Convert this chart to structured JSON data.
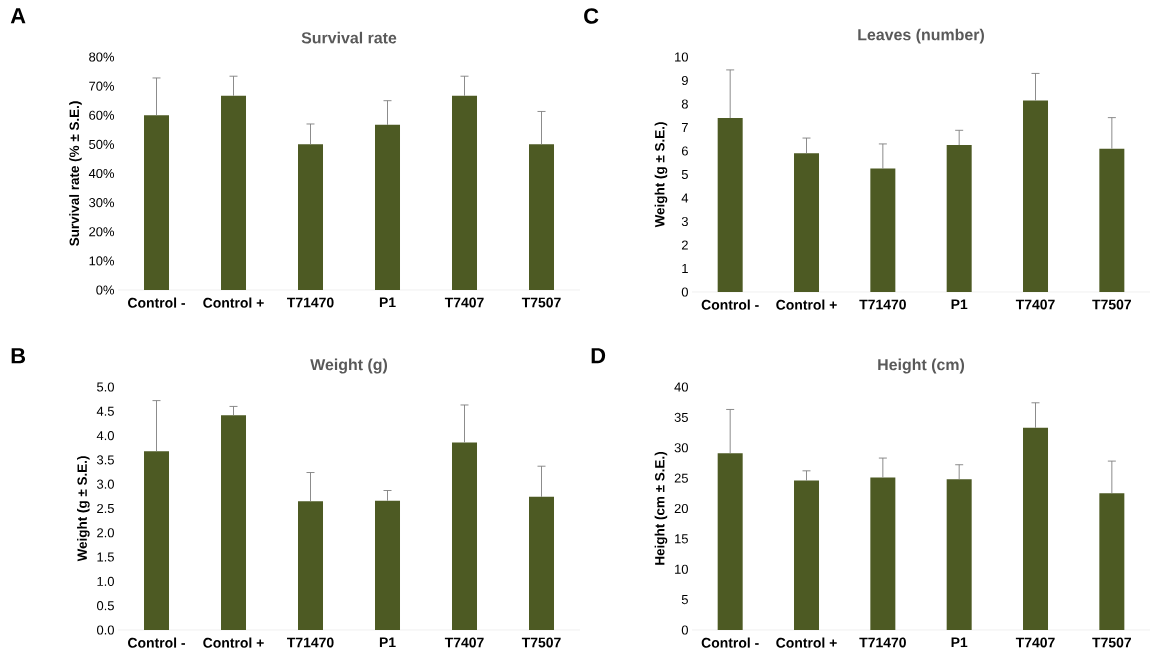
{
  "chart_data": [
    {
      "type": "bar",
      "title": "Survival rate",
      "ylabel": "Survival rate  (% ± S.E.)",
      "annotations": [
        "A"
      ],
      "categories": [
        "Control -",
        "Control +",
        "T71470",
        "P1",
        "T7407",
        "T7507"
      ],
      "values": [
        60,
        66.7,
        50,
        56.7,
        66.7,
        50
      ],
      "errors": [
        12.8,
        6.7,
        7,
        8.3,
        6.7,
        11.3
      ],
      "color": "#4d5a23",
      "ylim": [
        0,
        80
      ],
      "yticks": [
        {
          "value": 0,
          "label": "0%"
        },
        {
          "value": 10,
          "label": "10%"
        },
        {
          "value": 20,
          "label": "20%"
        },
        {
          "value": 30,
          "label": "30%"
        },
        {
          "value": 40,
          "label": "40%"
        },
        {
          "value": 50,
          "label": "50%"
        },
        {
          "value": 60,
          "label": "60%"
        },
        {
          "value": 70,
          "label": "70%"
        },
        {
          "value": 80,
          "label": "80%"
        }
      ]
    },
    {
      "type": "bar",
      "title": "Leaves (number)",
      "ylabel": "Weight (g ± S.E.)",
      "annotations": [
        "C"
      ],
      "categories": [
        "Control -",
        "Control +",
        "T71470",
        "P1",
        "T7407",
        "T7507"
      ],
      "values": [
        7.4,
        5.9,
        5.25,
        6.25,
        8.15,
        6.1
      ],
      "errors": [
        2.05,
        0.65,
        1.05,
        0.63,
        1.15,
        1.32
      ],
      "color": "#4d5a23",
      "ylim": [
        0,
        10
      ],
      "yticks": [
        0,
        1,
        2,
        3,
        4,
        5,
        6,
        7,
        8,
        9,
        10
      ]
    },
    {
      "type": "bar",
      "title": "Weight (g)",
      "ylabel": "Weight (g ± S.E.)",
      "annotations": [
        "B"
      ],
      "categories": [
        "Control -",
        "Control +",
        "T71470",
        "P1",
        "T7407",
        "T7507"
      ],
      "values": [
        3.68,
        4.42,
        2.65,
        2.66,
        3.86,
        2.74
      ],
      "errors": [
        1.04,
        0.18,
        0.59,
        0.21,
        0.77,
        0.63
      ],
      "color": "#4d5a23",
      "ylim": [
        0,
        5
      ],
      "yticks": [
        {
          "value": 0,
          "label": "0.0"
        },
        {
          "value": 0.5,
          "label": "0.5"
        },
        {
          "value": 1,
          "label": "1.0"
        },
        {
          "value": 1.5,
          "label": "1.5"
        },
        {
          "value": 2,
          "label": "2.0"
        },
        {
          "value": 2.5,
          "label": "2.5"
        },
        {
          "value": 3,
          "label": "3.0"
        },
        {
          "value": 3.5,
          "label": "3.5"
        },
        {
          "value": 4,
          "label": "4.0"
        },
        {
          "value": 4.5,
          "label": "4.5"
        },
        {
          "value": 5,
          "label": "5.0"
        }
      ]
    },
    {
      "type": "bar",
      "title": "Height (cm)",
      "ylabel": "Height (cm ± S.E.)",
      "annotations": [
        "D"
      ],
      "categories": [
        "Control -",
        "Control +",
        "T71470",
        "P1",
        "T7407",
        "T7507"
      ],
      "values": [
        29.1,
        24.6,
        25.1,
        24.8,
        33.3,
        22.5
      ],
      "errors": [
        7.2,
        1.6,
        3.2,
        2.4,
        4.1,
        5.3
      ],
      "color": "#4d5a23",
      "ylim": [
        0,
        40
      ],
      "yticks": [
        0,
        5,
        10,
        15,
        20,
        25,
        30,
        35,
        40
      ]
    }
  ]
}
